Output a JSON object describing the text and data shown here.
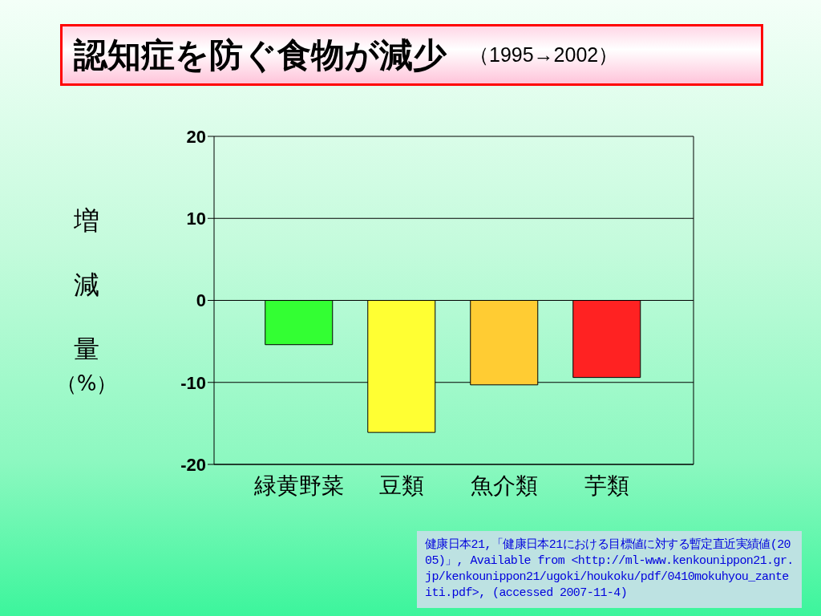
{
  "chart_data": {
    "type": "bar",
    "title": "認知症を防ぐ食物が減少",
    "subtitle": "（1995→2002）",
    "ylabel": "増減量（%）",
    "categories": [
      "緑黄野菜",
      "豆類",
      "魚介類",
      "芋類"
    ],
    "values": [
      -5.4,
      -16.1,
      -10.3,
      -9.4
    ],
    "colors": [
      "#33ff33",
      "#ffff33",
      "#ffcc33",
      "#ff2222"
    ],
    "ylim": [
      -20,
      20
    ],
    "yticks": [
      -20,
      -10,
      0,
      10,
      20
    ],
    "grid": "y",
    "annotations": [
      "健康日本21,「健康日本21における目標値に対する暫定直近実績値(2005)」, Available from <http://ml-www.kenkounippon21.gr.jp/kenkounippon21/ugoki/houkoku/pdf/0410mokuhyou_zanteiti.pdf>, (accessed 2007-11-4)"
    ]
  }
}
